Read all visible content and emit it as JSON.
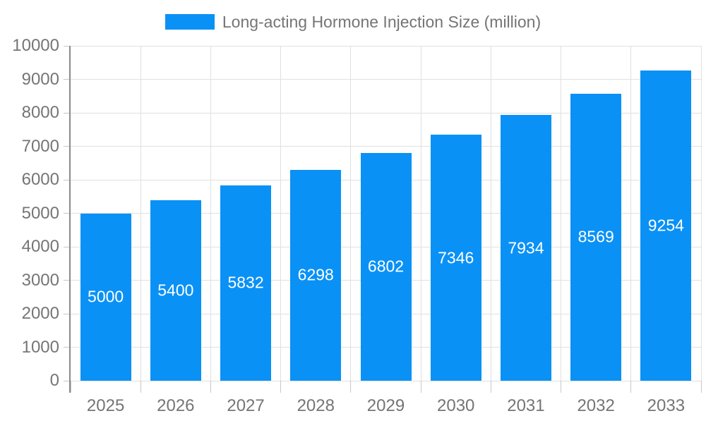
{
  "legend": {
    "label": "Long-acting Hormone Injection Size (million)"
  },
  "chart_data": {
    "type": "bar",
    "title": "Long-acting Hormone Injection Size (million)",
    "categories": [
      "2025",
      "2026",
      "2027",
      "2028",
      "2029",
      "2030",
      "2031",
      "2032",
      "2033"
    ],
    "values": [
      5000,
      5400,
      5832,
      6298,
      6802,
      7346,
      7934,
      8569,
      9254
    ],
    "xlabel": "",
    "ylabel": "",
    "ylim": [
      0,
      10000
    ],
    "ytick_interval": 1000,
    "ytick_labels": [
      "0",
      "1000",
      "2000",
      "3000",
      "4000",
      "5000",
      "6000",
      "7000",
      "8000",
      "9000",
      "10000"
    ],
    "grid": true,
    "legend_position": "top-center",
    "value_labels": "inside-bars"
  },
  "colors": {
    "bar": "#0a91f5",
    "bar_label": "#ffffff",
    "axis_text": "#757575",
    "grid_line": "#e0e0e0",
    "axis_line": "#8a8a8a",
    "tick_mark": "#c8c8c8",
    "background": "#ffffff"
  }
}
